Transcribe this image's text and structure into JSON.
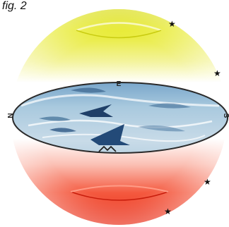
{
  "figure": {
    "label": "fig. 2",
    "compass": {
      "north": "N",
      "east": "E",
      "south": "S"
    },
    "stars": [
      "star-icon",
      "star-icon",
      "star-icon",
      "star-icon"
    ],
    "colors": {
      "upper_hemisphere": "#e6e81a",
      "lower_hemisphere": "#ee2b16",
      "horizon_plane": "#9fc3d8",
      "horizon_ring": "#2a2a2a",
      "ice_shadows": "#1f3f68"
    }
  }
}
